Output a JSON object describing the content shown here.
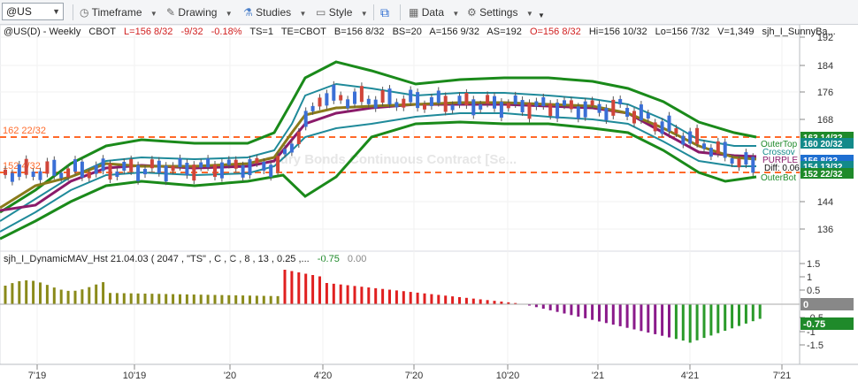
{
  "toolbar": {
    "symbol": "@US",
    "timeframe_label": "Timeframe",
    "drawing_label": "Drawing",
    "studies_label": "Studies",
    "style_label": "Style",
    "data_label": "Data",
    "settings_label": "Settings"
  },
  "header": {
    "title": "@US(D) - Weekly",
    "exchange": "CBOT",
    "last": "L=156 8/32",
    "change": "-9/32",
    "pct": "-0.18%",
    "ts": "TS=1",
    "te": "TE=CBOT",
    "bid": "B=156 8/32",
    "bs": "BS=20",
    "ask": "A=156 9/32",
    "as": "AS=192",
    "open": "O=156 8/32",
    "high": "Hi=156 10/32",
    "low": "Lo=156 7/32",
    "volume": "V=1,349",
    "study": "sjh_I_SunnyBa..."
  },
  "watermark": {
    "line1": "",
    "line2": "ssury Bonds Continuous Contract [Se..."
  },
  "indicator": {
    "name": "sjh_I_DynamicMAV_Hst 21.04.03 ( 2047 , \"TS\" , C , C ,  8 , 13 , 0.25 ,...",
    "value1": "-0.75",
    "value2": "0.00"
  },
  "price_lines": {
    "upper": "162 22/32",
    "lower": "152 4/32"
  },
  "price_axis": {
    "ticks": [
      "192",
      "184",
      "176",
      "168",
      "152",
      "144",
      "136"
    ],
    "labels": [
      {
        "text": "163 14/32",
        "color": "#1f8a2a"
      },
      {
        "text": "160 20/32",
        "color": "#138a8a"
      },
      {
        "text": "156 8/32",
        "color": "#1f6fd1"
      },
      {
        "text": "154 13/32",
        "color": "#138a8a"
      },
      {
        "text": "152 22/32",
        "color": "#1f8a2a"
      }
    ]
  },
  "band_labels": {
    "outer_top": "OuterTop",
    "crossover": "Crossov",
    "purple": "PURPLE",
    "diff": "Diff: 0.06",
    "outer_bottom": "OuterBot"
  },
  "indicator_axis": {
    "ticks": [
      "1.5",
      "1",
      "0.5",
      "-0.5",
      "-1",
      "-1.5"
    ],
    "zero_label": "0",
    "value_label": "-0.75"
  },
  "time_axis": {
    "labels": [
      "7'19",
      "10'19",
      "'20",
      "4'20",
      "7'20",
      "10'20",
      "'21",
      "4'21",
      "7'21"
    ]
  },
  "colors": {
    "outer_band": "#1a8a1a",
    "inner_band": "#1f8a9a",
    "maroon": "#8a1a6a",
    "olive": "#8a7a1a",
    "up_candle": "#3b6fd6",
    "down_candle": "#d0453a",
    "price_line": "#ff6a2a",
    "hist_olive": "#8a8a1a",
    "hist_red": "#e02020",
    "hist_purple": "#8a1a8a",
    "hist_green": "#2a9a2a"
  }
}
